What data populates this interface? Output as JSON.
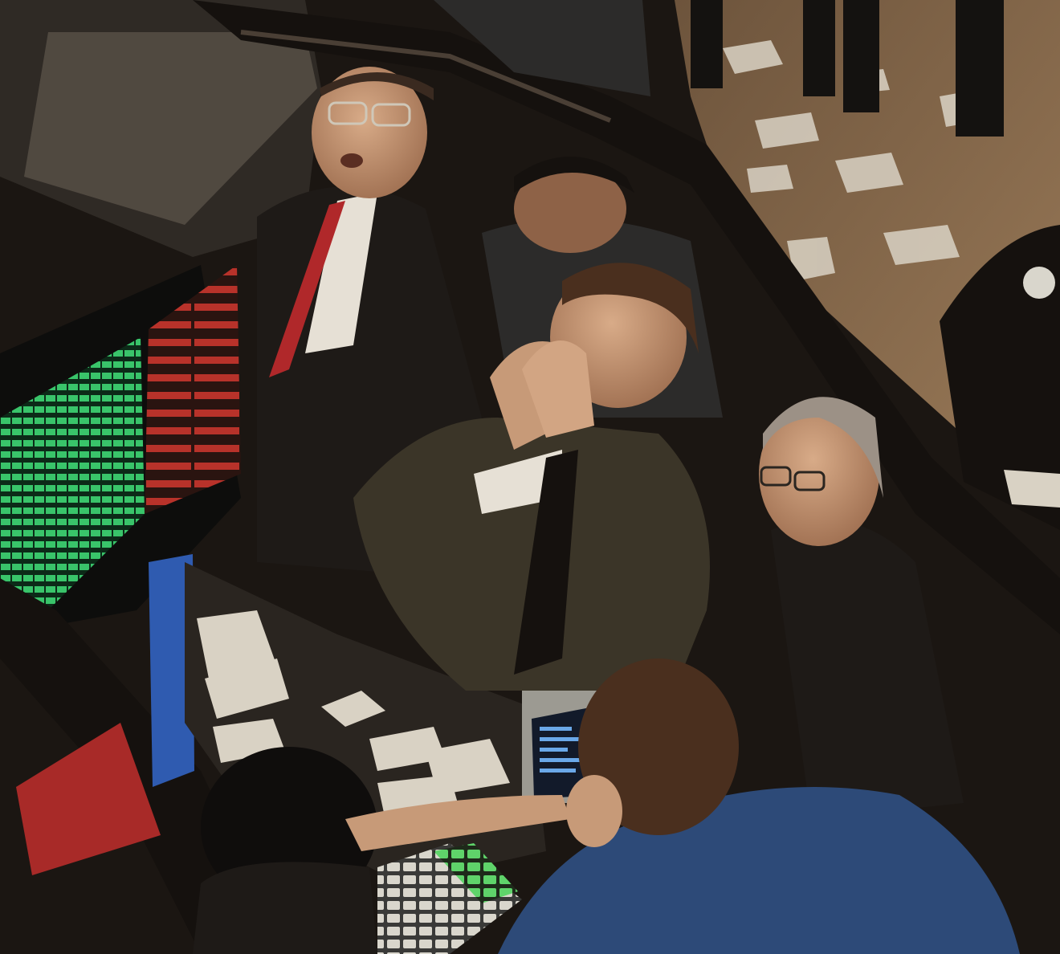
{
  "photo": {
    "subject": "trading-floor-photograph"
  },
  "palette": {
    "floor": "#8a6a4a",
    "floor_dark": "#5a4330",
    "paper": "#d9d2c4",
    "suit_dark": "#1e1a17",
    "suit_olive": "#3b3528",
    "suit_grey": "#2c2b2a",
    "jacket_blue": "#2d4a78",
    "skin": "#c79a78",
    "skin_shadow": "#8e6247",
    "hair_brown": "#4a2f1e",
    "hair_grey": "#9c9186",
    "tie_red": "#b0282a",
    "monitor_green": "#39c46a",
    "monitor_red": "#b8322a",
    "rail_dark": "#15110e",
    "booth_grey": "#2f2a25",
    "keypad_green": "#5fd36a"
  }
}
